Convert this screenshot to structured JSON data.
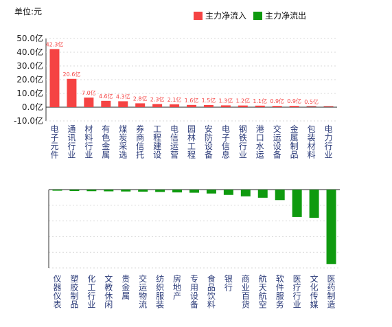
{
  "unit_label": "单位:元",
  "legend": {
    "inflow": {
      "label": "主力净流入",
      "color": "#f54343"
    },
    "outflow": {
      "label": "主力净流出",
      "color": "#0f9a0f"
    }
  },
  "chart_data": [
    {
      "type": "bar",
      "title": "",
      "series": [
        {
          "name": "主力净流入",
          "values": [
            42.3,
            20.6,
            7.0,
            4.6,
            4.3,
            2.8,
            2.3,
            2.1,
            1.6,
            1.5,
            1.3,
            1.2,
            1.1,
            0.9,
            0.9,
            0.5,
            0.2
          ]
        }
      ],
      "categories": [
        "电子元件",
        "通讯行业",
        "材料行业",
        "有色金属",
        "煤炭采选",
        "券商信托",
        "工程建设",
        "电信运营",
        "园林工程",
        "安防设备",
        "电子信息",
        "钢铁行业",
        "港口水运",
        "交运设备",
        "金属制品",
        "包装材料",
        "电力行业"
      ],
      "data_labels": [
        "42.3亿",
        "20.6亿",
        "7.0亿",
        "4.6亿",
        "4.3亿",
        "2.8亿",
        "2.3亿",
        "2.1亿",
        "1.6亿",
        "1.5亿",
        "1.3亿",
        "1.2亿",
        "1.1亿",
        "0.9亿",
        "0.9亿",
        "0.5亿",
        ""
      ],
      "ylim": [
        -10,
        50
      ],
      "yticks": [
        "-10.0亿",
        "0.0亿",
        "10.0亿",
        "20.0亿",
        "30.0亿",
        "40.0亿",
        "50.0亿"
      ],
      "ytick_values": [
        -10,
        0,
        10,
        20,
        30,
        40,
        50
      ],
      "grid": true,
      "color": "#f54343"
    },
    {
      "type": "bar",
      "title": "",
      "series": [
        {
          "name": "主力净流出",
          "values": [
            -0.7,
            -0.9,
            -1.0,
            -1.1,
            -1.2,
            -1.3,
            -1.5,
            -1.8,
            -2.0,
            -2.5,
            -3.4,
            -4.3,
            -5.2,
            -6.7,
            -17.5,
            -18.0,
            -47.5
          ]
        }
      ],
      "categories": [
        "仪器仪表",
        "塑胶制品",
        "化工行业",
        "文教休闲",
        "贵金属",
        "交运物流",
        "纺织服装",
        "房地产",
        "专用设备",
        "食品饮料",
        "银行",
        "商业百货",
        "航天航空",
        "软件服务",
        "医疗行业",
        "文化传媒",
        "医药制造"
      ],
      "ylim": [
        -50,
        0
      ],
      "grid": true,
      "color": "#0f9a0f"
    }
  ]
}
